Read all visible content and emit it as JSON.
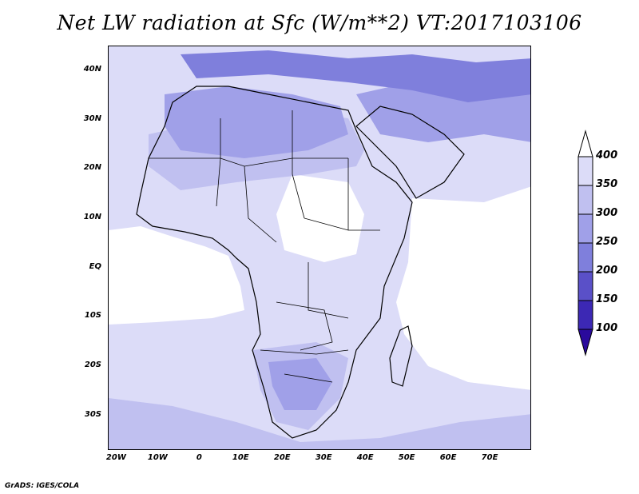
{
  "title": "Net LW radiation at Sfc (W/m**2) VT:2017103106",
  "footer": "GrADS: IGES/COLA",
  "map": {
    "region": "Africa",
    "lat_range": [
      -37,
      45
    ],
    "lon_range": [
      -22,
      80
    ],
    "lat_ticks": [
      {
        "value": 40,
        "label": "40N"
      },
      {
        "value": 30,
        "label": "30N"
      },
      {
        "value": 20,
        "label": "20N"
      },
      {
        "value": 10,
        "label": "10N"
      },
      {
        "value": 0,
        "label": "EQ"
      },
      {
        "value": -10,
        "label": "10S"
      },
      {
        "value": -20,
        "label": "20S"
      },
      {
        "value": -30,
        "label": "30S"
      }
    ],
    "lon_ticks": [
      {
        "value": -20,
        "label": "20W"
      },
      {
        "value": -10,
        "label": "10W"
      },
      {
        "value": 0,
        "label": "0"
      },
      {
        "value": 10,
        "label": "10E"
      },
      {
        "value": 20,
        "label": "20E"
      },
      {
        "value": 30,
        "label": "30E"
      },
      {
        "value": 40,
        "label": "40E"
      },
      {
        "value": 50,
        "label": "50E"
      },
      {
        "value": 60,
        "label": "60E"
      },
      {
        "value": 70,
        "label": "70E"
      }
    ]
  },
  "colorbar": {
    "levels": [
      "400",
      "350",
      "300",
      "250",
      "200",
      "150",
      "100"
    ],
    "colors": [
      "#ffffff",
      "#dcdcf8",
      "#c0c0f0",
      "#a0a0e8",
      "#7f7fdc",
      "#5a50c8",
      "#3c28b4",
      "#2a0a9c"
    ]
  }
}
